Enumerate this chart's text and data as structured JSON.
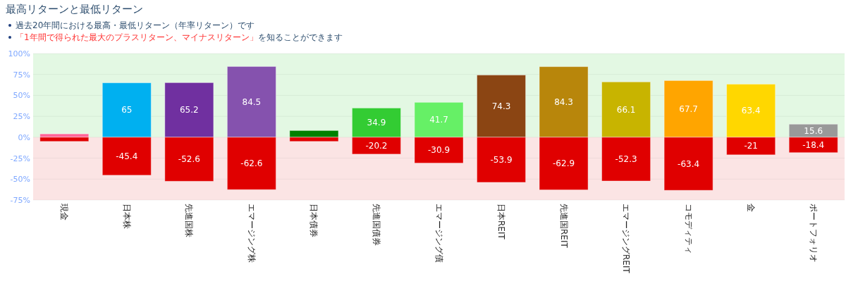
{
  "chart_data": {
    "type": "bar",
    "title": "最高リターンと最低リターン",
    "subtitle": "過去20年間における最高・最低リターン（年率リターン）です",
    "annotations": [
      "「1年間で得られた最大のプラスリターン、マイナスリターン」",
      "を知ることができます"
    ],
    "categories": [
      "現金",
      "日本株",
      "先進国株",
      "エマージング株",
      "日本債券",
      "先進国債券",
      "エマージング債",
      "日本REIT",
      "先進国REIT",
      "エマージングREIT",
      "コモディティ",
      "金",
      "ポートフォリオ"
    ],
    "stacked": true,
    "series": [
      {
        "colors": [
          "#ff6699",
          "#00b0f0",
          "#7030a0",
          "#8552ae",
          "#008000",
          "#33cc33",
          "#66f066",
          "#8b4513",
          "#b8860b",
          "#c8b400",
          "#ffa500",
          "#ffd700",
          "#999999"
        ],
        "values": [
          4,
          65,
          65.2,
          84.5,
          8,
          34.9,
          41.7,
          74.3,
          84.3,
          66.1,
          67.7,
          63.4,
          15.6
        ],
        "value_labels": [
          null,
          "65",
          "65.2",
          "84.5",
          null,
          "34.9",
          "41.7",
          "74.3",
          "84.3",
          "66.1",
          "67.7",
          "63.4",
          "15.6"
        ]
      },
      {
        "color": "#e00000",
        "values": [
          -5,
          -45.4,
          -52.6,
          -62.6,
          -5,
          -20.2,
          -30.9,
          -53.9,
          -62.9,
          -52.3,
          -63.4,
          -21,
          -18.4
        ],
        "value_labels": [
          null,
          "-45.4",
          "-52.6",
          "-62.6",
          null,
          "-20.2",
          "-30.9",
          "-53.9",
          "-62.9",
          "-52.3",
          "-63.4",
          "-21",
          "-18.4"
        ]
      }
    ],
    "ylim": [
      -75,
      100
    ],
    "yticks": [
      {
        "value": -75,
        "label": "-75%"
      },
      {
        "value": -50,
        "label": "-50%"
      },
      {
        "value": -25,
        "label": "-25%"
      },
      {
        "value": 0,
        "label": "0%"
      },
      {
        "value": 25,
        "label": "25%"
      },
      {
        "value": 50,
        "label": "50%"
      },
      {
        "value": 75,
        "label": "75%"
      },
      {
        "value": 100,
        "label": "100%"
      }
    ],
    "bands": [
      {
        "axis": "y",
        "from": 0,
        "to": 100,
        "color": "#e3f8e3"
      },
      {
        "axis": "y",
        "from": -75,
        "to": 0,
        "color": "#fbe4e4"
      }
    ],
    "grid": "y"
  }
}
